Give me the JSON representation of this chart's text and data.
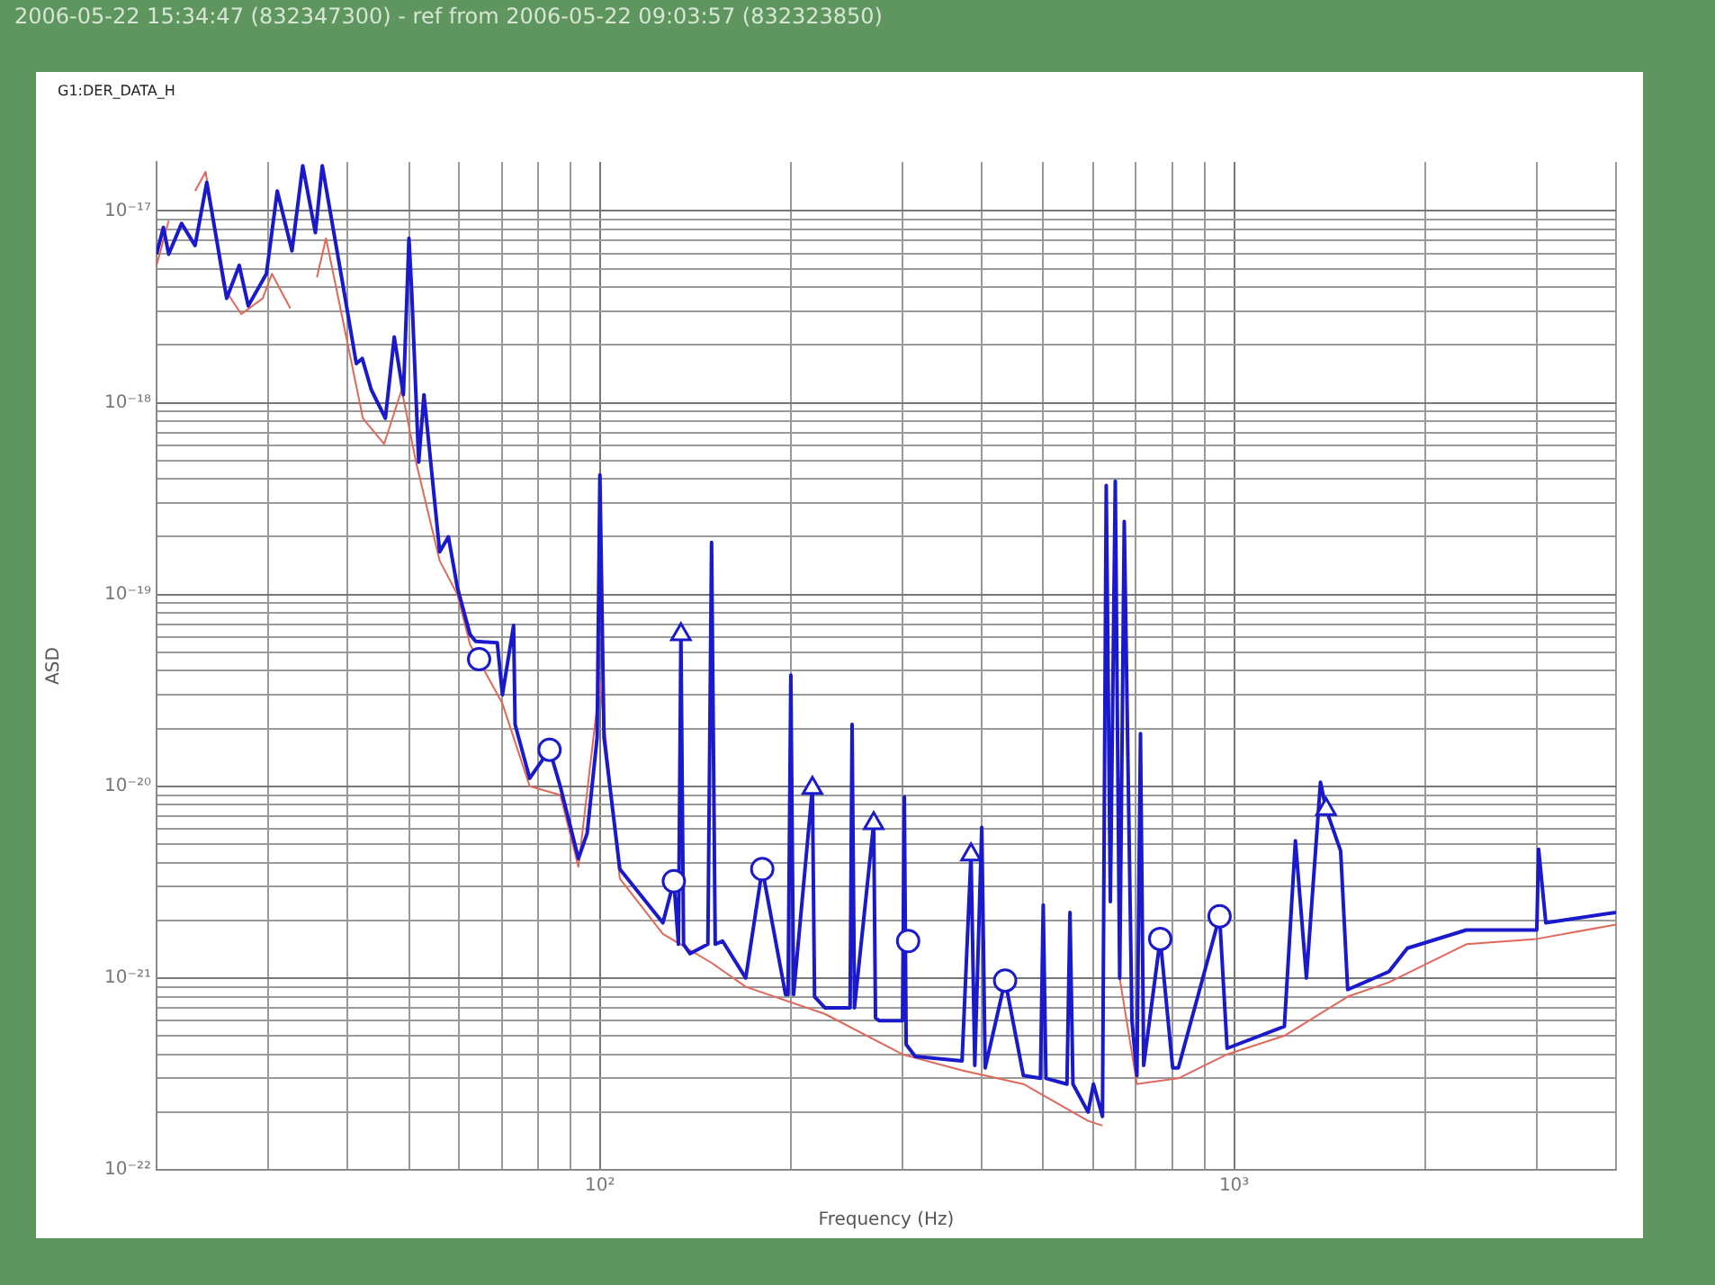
{
  "chart_data": {
    "type": "line",
    "title": "2006-05-22 15:34:47 (832347300)  -  ref from 2006-05-22 09:03:57 (832323850)",
    "subtitle": "G1:DER_DATA_H",
    "xlabel": "Frequency (Hz)",
    "ylabel": "ASD",
    "log": "xy",
    "grid": true,
    "xlim": [
      20,
      4000
    ],
    "ylim": [
      1e-22,
      1.8e-17
    ],
    "xticks": [
      {
        "value": 20,
        "label": null
      },
      {
        "value": 30,
        "label": null
      },
      {
        "value": 40,
        "label": null
      },
      {
        "value": 50,
        "label": null
      },
      {
        "value": 60,
        "label": null
      },
      {
        "value": 70,
        "label": null
      },
      {
        "value": 80,
        "label": null
      },
      {
        "value": 90,
        "label": null
      },
      {
        "value": 100,
        "label": "10²"
      },
      {
        "value": 200,
        "label": null
      },
      {
        "value": 300,
        "label": null
      },
      {
        "value": 400,
        "label": null
      },
      {
        "value": 500,
        "label": null
      },
      {
        "value": 600,
        "label": null
      },
      {
        "value": 700,
        "label": null
      },
      {
        "value": 800,
        "label": null
      },
      {
        "value": 900,
        "label": null
      },
      {
        "value": 1000,
        "label": "10³"
      },
      {
        "value": 2000,
        "label": null
      },
      {
        "value": 3000,
        "label": null
      },
      {
        "value": 4000,
        "label": null
      }
    ],
    "yticks": [
      {
        "value": 1e-22,
        "label": "10⁻²²"
      },
      {
        "value": 2e-22,
        "label": null
      },
      {
        "value": 3e-22,
        "label": null
      },
      {
        "value": 4e-22,
        "label": null
      },
      {
        "value": 5e-22,
        "label": null
      },
      {
        "value": 6e-22,
        "label": null
      },
      {
        "value": 7e-22,
        "label": null
      },
      {
        "value": 8e-22,
        "label": null
      },
      {
        "value": 9e-22,
        "label": null
      },
      {
        "value": 1e-21,
        "label": "10⁻²¹"
      },
      {
        "value": 2e-21,
        "label": null
      },
      {
        "value": 3e-21,
        "label": null
      },
      {
        "value": 4e-21,
        "label": null
      },
      {
        "value": 5e-21,
        "label": null
      },
      {
        "value": 6e-21,
        "label": null
      },
      {
        "value": 7e-21,
        "label": null
      },
      {
        "value": 8e-21,
        "label": null
      },
      {
        "value": 9e-21,
        "label": null
      },
      {
        "value": 1e-20,
        "label": "10⁻²⁰"
      },
      {
        "value": 2e-20,
        "label": null
      },
      {
        "value": 3e-20,
        "label": null
      },
      {
        "value": 4e-20,
        "label": null
      },
      {
        "value": 5e-20,
        "label": null
      },
      {
        "value": 6e-20,
        "label": null
      },
      {
        "value": 7e-20,
        "label": null
      },
      {
        "value": 8e-20,
        "label": null
      },
      {
        "value": 9e-20,
        "label": null
      },
      {
        "value": 1e-19,
        "label": "10⁻¹⁹"
      },
      {
        "value": 2e-19,
        "label": null
      },
      {
        "value": 3e-19,
        "label": null
      },
      {
        "value": 4e-19,
        "label": null
      },
      {
        "value": 5e-19,
        "label": null
      },
      {
        "value": 6e-19,
        "label": null
      },
      {
        "value": 7e-19,
        "label": null
      },
      {
        "value": 8e-19,
        "label": null
      },
      {
        "value": 9e-19,
        "label": null
      },
      {
        "value": 1e-18,
        "label": "10⁻¹⁸"
      },
      {
        "value": 2e-18,
        "label": null
      },
      {
        "value": 3e-18,
        "label": null
      },
      {
        "value": 4e-18,
        "label": null
      },
      {
        "value": 5e-18,
        "label": null
      },
      {
        "value": 6e-18,
        "label": null
      },
      {
        "value": 7e-18,
        "label": null
      },
      {
        "value": 8e-18,
        "label": null
      },
      {
        "value": 9e-18,
        "label": null
      },
      {
        "value": 1e-17,
        "label": "10⁻¹⁷"
      }
    ],
    "series": [
      {
        "color": "#e0685a",
        "marker": "none",
        "x": [
          20,
          20.9,
          21.6,
          23.0,
          23.9,
          25.5,
          27.2,
          29.4,
          30.4,
          32.5,
          34.0,
          35.8,
          37.0,
          42.3,
          45.7,
          48.7,
          51.3,
          55.9,
          59.6,
          62.4,
          70.2,
          77.5,
          86.6,
          92.5,
          100,
          107.5,
          125.7,
          150,
          169.8,
          226.3,
          300,
          372.4,
          465.3,
          588.5,
          620,
          640,
          660,
          702.6,
          816.6,
          974.7,
          1200,
          1510,
          1754,
          2323,
          3000,
          4000
        ],
        "values": [
          5.2e-18,
          8.9e-18,
          null,
          1.27e-17,
          1.6e-17,
          4e-18,
          2.9e-18,
          3.5e-18,
          4.7e-18,
          3.1e-18,
          null,
          4.5e-18,
          7.2e-18,
          8.3e-19,
          6.1e-19,
          1.17e-18,
          4.9e-19,
          1.5e-19,
          1e-19,
          5.5e-20,
          2.7e-20,
          1e-20,
          9e-21,
          3.8e-21,
          3.5e-20,
          3.3e-21,
          1.7e-21,
          1.2e-21,
          9e-22,
          6.5e-22,
          4e-22,
          3.3e-22,
          2.8e-22,
          1.8e-22,
          1.7e-22,
          null,
          1e-21,
          2.8e-22,
          3e-22,
          4e-22,
          5e-22,
          8e-22,
          9.5e-22,
          1.5e-21,
          1.6e-21,
          1.9e-21
        ]
      },
      {
        "color": "#1a1acc",
        "marker": "none",
        "x": [
          20,
          20.5,
          20.9,
          21.9,
          23.0,
          24.0,
          25.8,
          27.0,
          27.9,
          29.8,
          31.0,
          32.7,
          34.0,
          35.6,
          36.5,
          39.5,
          41.3,
          42.2,
          43.6,
          45.9,
          47.4,
          49.0,
          50.0,
          50.5,
          51.8,
          52.8,
          55.9,
          57.7,
          59.6,
          62.4,
          63.7,
          68.9,
          70.2,
          73.1,
          73.5,
          77.5,
          83.3,
          86.6,
          92.5,
          95.5,
          99,
          100,
          101.5,
          107.5,
          125.7,
          130.8,
          133,
          134.2,
          135.5,
          138.7,
          148,
          150,
          152,
          156.1,
          169.8,
          180.3,
          196.2,
          198,
          200,
          202,
          216.3,
          218,
          226.3,
          248,
          249.8,
          252,
          270.2,
          272,
          275.5,
          300,
          302,
          304,
          314.2,
          372.4,
          384.7,
          390,
          400,
          405,
          435.4,
          465.3,
          495,
          500,
          505,
          545,
          551,
          557,
          588.5,
          600,
          620,
          628.5,
          638,
          649.5,
          660,
          671,
          690,
          702.6,
          711.7,
          720,
          764.6,
          800,
          816.6,
          948.5,
          974.7,
          1200,
          1249,
          1300,
          1368,
          1396,
          1472,
          1510,
          1754,
          1875,
          2323,
          3000,
          3020,
          3100,
          4000
        ],
        "values": [
          5.95e-18,
          8.2e-18,
          5.95e-18,
          8.6e-18,
          6.6e-18,
          1.41e-17,
          3.5e-18,
          5.2e-18,
          3.2e-18,
          4.7e-18,
          1.27e-17,
          6.2e-18,
          1.72e-17,
          7.7e-18,
          1.72e-17,
          3.8e-18,
          1.6e-18,
          1.7e-18,
          1.17e-18,
          8.3e-19,
          2.2e-18,
          1.1e-18,
          7.2e-18,
          3.8e-18,
          4.9e-19,
          1.1e-18,
          1.67e-19,
          2e-19,
          1.09e-19,
          6.2e-20,
          5.7e-20,
          5.6e-20,
          3e-20,
          6.9e-20,
          2.1e-20,
          1.1e-20,
          1.55e-20,
          1e-20,
          4.2e-21,
          5.7e-21,
          1.8e-20,
          4.2e-19,
          1.8e-20,
          3.7e-21,
          1.94e-21,
          3.2e-21,
          1.5e-21,
          6.2e-20,
          1.5e-21,
          1.34e-21,
          1.5e-21,
          1.87e-19,
          1.5e-21,
          1.56e-21,
          1e-21,
          3.7e-21,
          8.2e-22,
          8.2e-22,
          3.8e-20,
          8.2e-22,
          9.8e-21,
          8e-22,
          7e-22,
          7e-22,
          2.1e-20,
          7e-22,
          6.4e-21,
          6.2e-22,
          6e-22,
          6e-22,
          8.8e-21,
          4.5e-22,
          3.9e-22,
          3.7e-22,
          4.4e-21,
          3.5e-22,
          6.1e-21,
          3.4e-22,
          9.7e-22,
          3.1e-22,
          3e-22,
          2.4e-21,
          3e-22,
          2.8e-22,
          2.2e-21,
          2.8e-22,
          2e-22,
          2.8e-22,
          1.9e-22,
          3.7e-19,
          2.5e-21,
          3.9e-19,
          1e-21,
          2.4e-19,
          6e-22,
          3.1e-22,
          1.88e-20,
          3.5e-22,
          1.6e-21,
          3.4e-22,
          3.4e-22,
          2.1e-21,
          4.3e-22,
          5.6e-22,
          5.2e-21,
          1e-21,
          1.05e-20,
          7.6e-21,
          4.6e-21,
          8.7e-22,
          1.08e-21,
          1.43e-21,
          1.78e-21,
          1.78e-21,
          4.7e-21,
          1.94e-21,
          2.2e-21
        ]
      },
      {
        "type": "scatter",
        "color": "#1a1acc",
        "marker": "circle",
        "x": [
          64.5,
          83.3,
          130.8,
          180.3,
          306.2,
          435.4,
          764.6,
          948.5
        ],
        "values": [
          4.6e-20,
          1.55e-20,
          3.2e-21,
          3.7e-21,
          1.56e-21,
          9.7e-22,
          1.6e-21,
          2.1e-21
        ]
      },
      {
        "type": "scatter",
        "color": "#1a1acc",
        "marker": "triangle",
        "x": [
          134.2,
          216.3,
          270.2,
          384.7,
          1396
        ],
        "values": [
          6.2e-20,
          9.8e-21,
          6.4e-21,
          4.4e-21,
          7.6e-21
        ]
      }
    ]
  }
}
